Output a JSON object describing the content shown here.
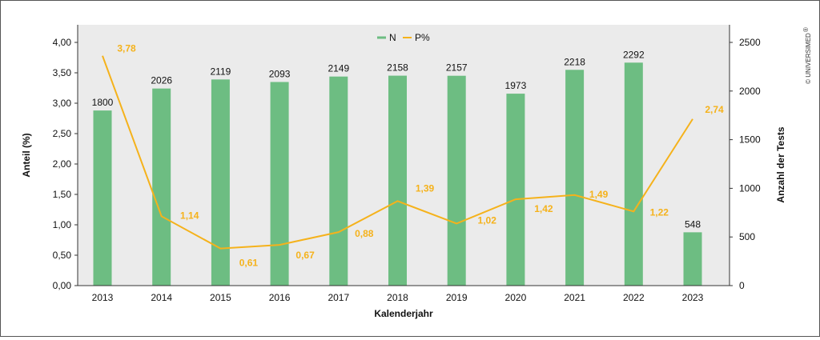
{
  "chart_data": {
    "type": "bar",
    "categories": [
      "2013",
      "2014",
      "2015",
      "2016",
      "2017",
      "2018",
      "2019",
      "2020",
      "2021",
      "2022",
      "2023"
    ],
    "series": [
      {
        "name": "N",
        "kind": "bar",
        "axis": "right",
        "values": [
          1800,
          2026,
          2119,
          2093,
          2149,
          2158,
          2157,
          1973,
          2218,
          2292,
          548
        ],
        "labels": [
          "1800",
          "2026",
          "2119",
          "2093",
          "2149",
          "2158",
          "2157",
          "1973",
          "2218",
          "2292",
          "548"
        ],
        "color": "#6dbd82"
      },
      {
        "name": "P%",
        "kind": "line",
        "axis": "left",
        "values": [
          3.78,
          1.14,
          0.61,
          0.67,
          0.88,
          1.39,
          1.02,
          1.42,
          1.49,
          1.22,
          2.74
        ],
        "labels": [
          "3,78",
          "1,14",
          "0,61",
          "0,67",
          "0,88",
          "1,39",
          "1,02",
          "1,42",
          "1,49",
          "1,22",
          "2,74"
        ],
        "color": "#f5b21b"
      }
    ],
    "xlabel": "Kalenderjahr",
    "ylabel_left": "Anteil (%)",
    "ylabel_right": "Anzahl der Tests",
    "ylim_left": [
      0,
      4.0
    ],
    "yticks_left": [
      "0,00",
      "0,50",
      "1,00",
      "1,50",
      "2,00",
      "2,50",
      "3,00",
      "3,50",
      "4,00"
    ],
    "ylim_right": [
      0,
      2500
    ],
    "yticks_right": [
      "0",
      "500",
      "1000",
      "1500",
      "2000",
      "2500"
    ],
    "legend_position": "top-center",
    "grid": false,
    "plot_background": "#ebebeb"
  },
  "copyright": "© UNIVERSIMED",
  "copyright_mark": "®"
}
